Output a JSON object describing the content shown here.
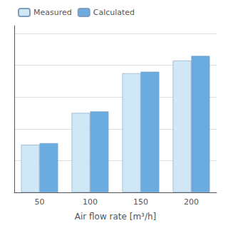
{
  "chart_data": {
    "type": "bar",
    "xlabel": "Air flow rate [m³/h]",
    "categories": [
      "50",
      "100",
      "150",
      "200"
    ],
    "series": [
      {
        "name": "Measured",
        "color": "#d0e8f5",
        "values": [
          0.3,
          0.5,
          0.75,
          0.83
        ]
      },
      {
        "name": "Calculated",
        "color": "#6aabe0",
        "values": [
          0.31,
          0.51,
          0.76,
          0.86
        ]
      }
    ],
    "ylim": [
      0,
      1.05
    ],
    "yticks": [
      0,
      0.2,
      0.4,
      0.6,
      0.8,
      1.0
    ],
    "grid": true,
    "legend": "upper left",
    "tick_labels": "x"
  }
}
